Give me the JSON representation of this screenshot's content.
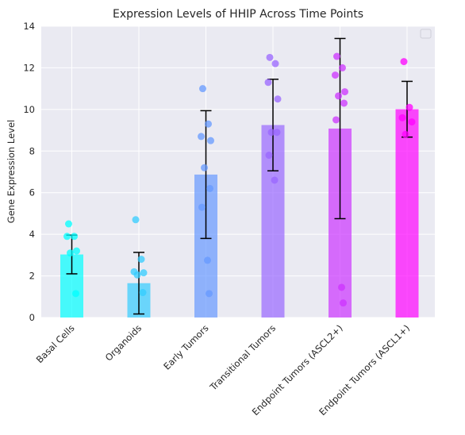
{
  "chart_data": {
    "type": "bar",
    "title": "Expression Levels of HHIP Across Time Points",
    "xlabel": "",
    "ylabel": "Gene Expression Level",
    "ylim": [
      0,
      14
    ],
    "yticks": [
      0,
      2,
      4,
      6,
      8,
      10,
      12,
      14
    ],
    "grid": true,
    "legend_position": "top-right",
    "categories": [
      "Basal Cells",
      "Organoids",
      "Early Tumors",
      "Transitional Tumors",
      "Endpoint Tumors (ASCL2+)",
      "Endpoint Tumors (ASCL1+)"
    ],
    "values": [
      3.03,
      1.65,
      6.87,
      9.25,
      9.08,
      10.01
    ],
    "errors": [
      0.93,
      1.48,
      3.07,
      2.2,
      4.33,
      1.34
    ],
    "colors": [
      "#00ffff",
      "#33ccff",
      "#6699ff",
      "#9966ff",
      "#cc33ff",
      "#ff00ff"
    ],
    "points": [
      [
        4.5,
        3.9,
        3.9,
        3.2,
        3.1,
        1.15
      ],
      [
        4.7,
        2.8,
        2.2,
        2.15,
        2.05,
        1.2
      ],
      [
        11.0,
        9.3,
        8.7,
        8.5,
        7.2,
        6.2,
        5.3,
        2.75,
        1.15
      ],
      [
        12.5,
        12.2,
        11.3,
        10.5,
        8.9,
        8.9,
        7.8,
        6.6
      ],
      [
        12.55,
        12.0,
        11.65,
        10.85,
        10.65,
        10.3,
        9.5,
        1.45,
        0.7
      ],
      [
        12.3,
        10.1,
        9.6,
        9.4,
        8.8
      ]
    ]
  }
}
